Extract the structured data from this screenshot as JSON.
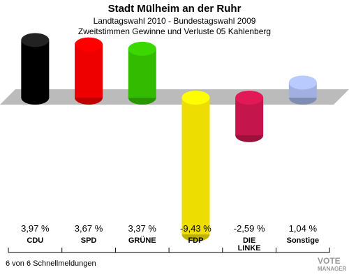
{
  "chart_data": {
    "type": "bar",
    "title": "Stadt Mülheim an der Ruhr",
    "subtitle": "Landtagswahl 2010 - Bundestagswahl 2009",
    "subtitle2": "Zweitstimmen Gewinne und Verluste 05 Kahlenberg",
    "categories": [
      "CDU",
      "SPD",
      "GRÜNE",
      "FDP",
      "DIE LINKE",
      "Sonstige"
    ],
    "values": [
      3.97,
      3.67,
      3.37,
      -9.43,
      -2.59,
      1.04
    ],
    "value_labels": [
      "3,97 %",
      "3,67 %",
      "3,37 %",
      "-9,43 %",
      "-2,59 %",
      "1,04 %"
    ],
    "colors": [
      "#000000",
      "#ee0000",
      "#33bb00",
      "#eedd00",
      "#c4164c",
      "#a0b0e0"
    ],
    "footnote": "6 von 6 Schnellmeldungen",
    "logo": [
      "VOTE",
      "MANAGER"
    ]
  }
}
